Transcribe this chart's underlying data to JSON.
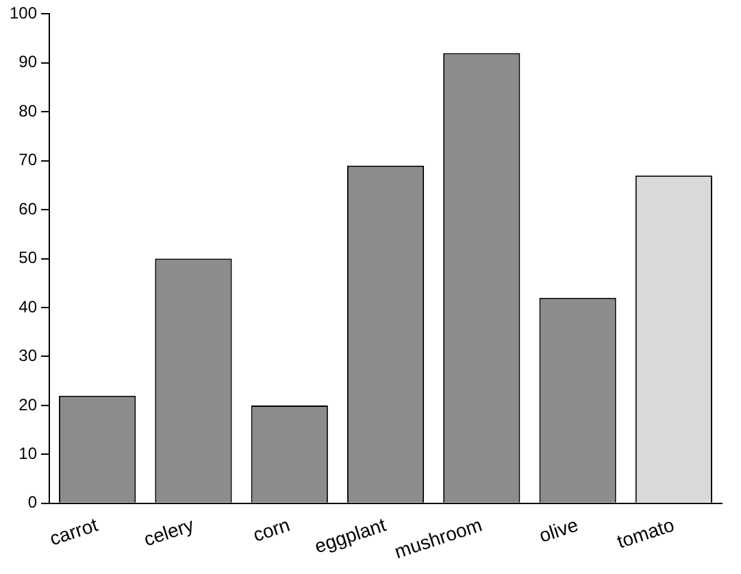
{
  "chart_data": {
    "type": "bar",
    "categories": [
      "carrot",
      "celery",
      "corn",
      "eggplant",
      "mushroom",
      "olive",
      "tomato"
    ],
    "values": [
      22,
      50,
      20,
      69,
      92,
      42,
      67
    ],
    "colors": [
      "#8c8c8c",
      "#8c8c8c",
      "#8c8c8c",
      "#8c8c8c",
      "#8c8c8c",
      "#8c8c8c",
      "#d9d9d9"
    ],
    "ylim": [
      0,
      100
    ],
    "yticks": [
      0,
      10,
      20,
      30,
      40,
      50,
      60,
      70,
      80,
      90,
      100
    ],
    "grid": false,
    "legend": false
  }
}
